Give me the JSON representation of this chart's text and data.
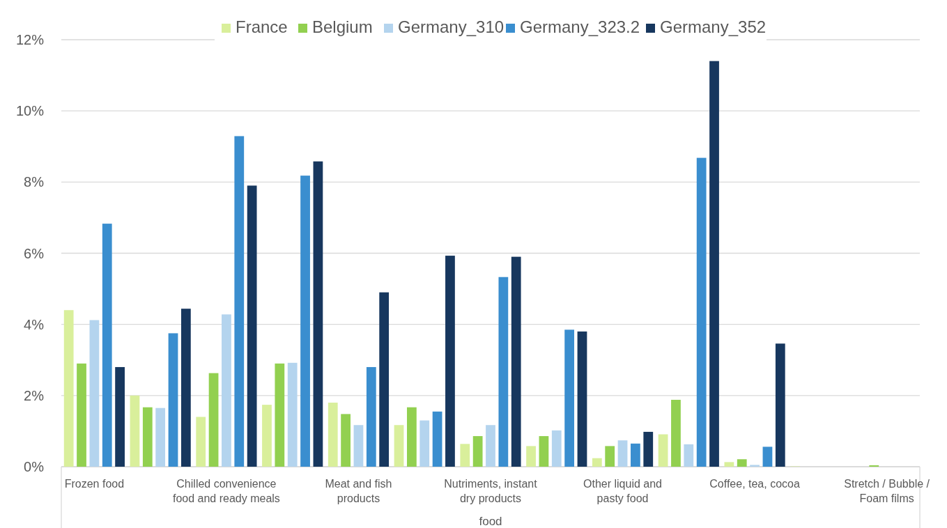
{
  "chart_data": {
    "type": "bar",
    "xlabel": "food",
    "categories": [
      "Frozen food",
      null,
      "Chilled convenience food and ready meals",
      null,
      "Meat and fish products",
      null,
      "Nutriments, instant dry products",
      null,
      "Other liquid and pasty food",
      null,
      "Coffee, tea, cocoa",
      null,
      "Stretch / Bubble / Foam films"
    ],
    "series": [
      {
        "name": "France",
        "color": "#d9ef9b",
        "values": [
          4.4,
          2.0,
          1.4,
          1.74,
          1.8,
          1.17,
          0.64,
          0.58,
          0.24,
          0.91,
          0.13,
          0.01,
          0
        ]
      },
      {
        "name": "Belgium",
        "color": "#92d050",
        "values": [
          2.9,
          1.67,
          2.63,
          2.9,
          1.48,
          1.67,
          0.86,
          0.86,
          0.58,
          1.88,
          0.21,
          0,
          0.04
        ]
      },
      {
        "name": "Germany_310",
        "color": "#b4d4ee",
        "values": [
          4.12,
          1.65,
          4.28,
          2.92,
          1.17,
          1.3,
          1.17,
          1.02,
          0.74,
          0.63,
          0.05,
          0,
          0
        ]
      },
      {
        "name": "Germany_323.2",
        "color": "#3a8ecf",
        "values": [
          6.83,
          3.75,
          9.29,
          8.18,
          2.8,
          1.55,
          5.33,
          3.85,
          0.65,
          8.68,
          0.56,
          0,
          0
        ]
      },
      {
        "name": "Germany_352",
        "color": "#17375e",
        "values": [
          2.8,
          4.44,
          7.9,
          8.58,
          4.9,
          5.93,
          5.9,
          3.8,
          0.98,
          11.4,
          3.46,
          0,
          0
        ]
      }
    ],
    "ylim": [
      0,
      12
    ],
    "yticks": [
      {
        "value": 0,
        "label": "0%"
      },
      {
        "value": 2,
        "label": "2%"
      },
      {
        "value": 4,
        "label": "4%"
      },
      {
        "value": 6,
        "label": "6%"
      },
      {
        "value": 8,
        "label": "8%"
      },
      {
        "value": 10,
        "label": "10%"
      },
      {
        "value": 12,
        "label": "12%"
      }
    ],
    "grid": "y",
    "legend": "top"
  }
}
